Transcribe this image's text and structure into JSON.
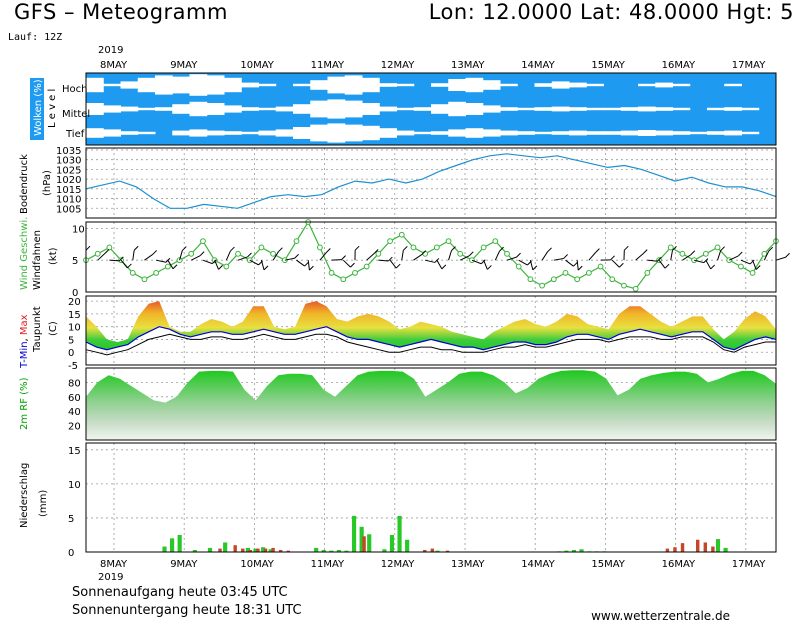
{
  "header": {
    "title": "GFS – Meteogramm",
    "coords": "Lon: 12.0000  Lat: 48.0000  Hgt: 5",
    "run": "Lauf: 12Z",
    "year_top": "2019",
    "year_bottom": "2019"
  },
  "footer": {
    "sunrise": "Sonnenaufgang heute 03:45 UTC",
    "sunset": "Sonnenuntergang heute 18:31 UTC",
    "site": "www.wetterzentrale.de"
  },
  "colors": {
    "cloud": "#1e9bf0",
    "pressure": "#1e90d0",
    "wind": "#3cb43c",
    "tmin": "#0000c8",
    "tmax": "#e02020",
    "humidity": "#00c800",
    "precip_rain": "#28c828",
    "precip_conv": "#c84628"
  },
  "chart_data": [
    {
      "type": "heatmap",
      "panel": "clouds",
      "ylabel": [
        "Wolken (%)",
        "L e v e l"
      ],
      "levels": [
        "Hoch",
        "Mittel",
        "Tief"
      ],
      "x_days": [
        "8MAY",
        "9MAY",
        "10MAY",
        "11MAY",
        "12MAY",
        "13MAY",
        "14MAY",
        "15MAY",
        "16MAY",
        "17MAY"
      ],
      "coverage": {
        "Hoch": [
          40,
          90,
          70,
          40,
          20,
          30,
          10,
          20,
          40,
          80,
          90,
          95,
          90,
          60,
          30,
          20,
          40,
          85,
          90,
          95,
          85,
          50,
          40,
          60,
          90,
          95,
          85,
          70,
          80,
          90,
          95,
          95,
          90,
          80,
          90,
          95,
          95,
          90,
          95,
          100
        ],
        "Mittel": [
          50,
          70,
          80,
          90,
          85,
          60,
          40,
          50,
          70,
          85,
          90,
          80,
          60,
          30,
          20,
          30,
          50,
          80,
          90,
          85,
          60,
          40,
          50,
          70,
          85,
          90,
          85,
          80,
          85,
          90,
          90,
          85,
          80,
          85,
          90,
          95,
          90,
          85,
          90,
          100
        ],
        "Tief": [
          60,
          70,
          85,
          90,
          95,
          80,
          70,
          80,
          85,
          90,
          80,
          70,
          50,
          30,
          20,
          30,
          40,
          60,
          80,
          90,
          85,
          70,
          60,
          70,
          80,
          85,
          90,
          85,
          80,
          85,
          85,
          80,
          75,
          80,
          85,
          90,
          85,
          80,
          90,
          100
        ]
      }
    },
    {
      "type": "line",
      "panel": "pressure",
      "ylabel": [
        "Bodendruck",
        "(hPa)"
      ],
      "ylim": [
        1000,
        1036
      ],
      "yticks": [
        "1005",
        "1010",
        "1015",
        "1020",
        "1025",
        "1030",
        "1035"
      ],
      "values": [
        1015,
        1017,
        1019,
        1016,
        1010,
        1005,
        1005,
        1007,
        1006,
        1005,
        1008,
        1011,
        1012,
        1011,
        1012,
        1016,
        1019,
        1018,
        1020,
        1018,
        1020,
        1024,
        1027,
        1030,
        1032,
        1033,
        1032,
        1031,
        1032,
        1030,
        1028,
        1026,
        1027,
        1025,
        1022,
        1019,
        1021,
        1018,
        1016,
        1016,
        1014,
        1011
      ]
    },
    {
      "type": "line",
      "panel": "wind",
      "ylabel": [
        "Wind Geschwi.",
        "Windfahnen",
        "(kt)"
      ],
      "ylim": [
        0,
        11
      ],
      "yticks": [
        "0",
        "5",
        "10"
      ],
      "values": [
        5,
        6,
        7,
        5,
        3,
        2,
        3,
        4,
        5,
        6,
        8,
        5,
        4,
        6,
        5,
        7,
        6,
        5,
        8,
        11,
        7,
        3,
        2,
        3,
        4,
        6,
        8,
        9,
        7,
        6,
        7,
        8,
        6,
        5,
        7,
        8,
        6,
        4,
        2,
        1,
        2,
        3,
        2,
        3,
        4,
        2,
        1,
        0.5,
        3,
        5,
        7,
        6,
        5,
        6,
        7,
        5,
        4,
        3,
        6,
        8
      ]
    },
    {
      "type": "area",
      "panel": "temperature",
      "ylabel": [
        "T-Min, Max",
        "Taupunkt",
        "(C)"
      ],
      "ylim": [
        -5,
        22
      ],
      "yticks": [
        "-5",
        "0",
        "5",
        "10",
        "15",
        "20"
      ],
      "series": [
        {
          "name": "Max",
          "values": [
            14,
            10,
            5,
            4,
            5,
            14,
            19,
            20,
            10,
            8,
            8,
            11,
            13,
            12,
            10,
            12,
            18,
            18,
            10,
            9,
            10,
            19,
            20,
            18,
            13,
            12,
            14,
            15,
            14,
            12,
            9,
            10,
            12,
            11,
            10,
            8,
            7,
            6,
            5,
            8,
            10,
            12,
            13,
            11,
            10,
            12,
            15,
            14,
            11,
            10,
            9,
            15,
            18,
            18,
            15,
            12,
            10,
            12,
            14,
            14,
            9,
            5,
            8,
            13,
            16,
            14,
            9
          ]
        },
        {
          "name": "Min",
          "values": [
            4,
            2,
            1,
            2,
            3,
            6,
            8,
            10,
            9,
            7,
            6,
            7,
            8,
            8,
            7,
            7,
            8,
            9,
            8,
            7,
            7,
            8,
            9,
            10,
            8,
            6,
            5,
            5,
            4,
            3,
            2,
            3,
            4,
            5,
            4,
            3,
            2,
            2,
            1,
            2,
            3,
            4,
            4,
            3,
            3,
            4,
            6,
            7,
            7,
            6,
            5,
            7,
            8,
            9,
            8,
            7,
            6,
            7,
            8,
            8,
            5,
            2,
            1,
            3,
            5,
            6,
            5
          ]
        },
        {
          "name": "Taupunkt",
          "values": [
            1,
            0,
            -1,
            0,
            1,
            3,
            5,
            6,
            7,
            6,
            5,
            5,
            6,
            6,
            5,
            5,
            6,
            7,
            6,
            5,
            5,
            6,
            7,
            7,
            6,
            4,
            3,
            2,
            1,
            0,
            0,
            1,
            2,
            2,
            1,
            1,
            0,
            0,
            0,
            1,
            2,
            2,
            3,
            2,
            2,
            3,
            4,
            5,
            5,
            5,
            4,
            5,
            6,
            6,
            6,
            5,
            5,
            6,
            6,
            6,
            4,
            1,
            0,
            2,
            3,
            4,
            4
          ]
        }
      ]
    },
    {
      "type": "area",
      "panel": "humidity",
      "ylabel": [
        "2m RF (%)"
      ],
      "ylim": [
        0,
        100
      ],
      "yticks": [
        "20",
        "40",
        "60",
        "80"
      ],
      "values": [
        60,
        80,
        90,
        85,
        75,
        65,
        55,
        52,
        60,
        80,
        95,
        96,
        96,
        95,
        70,
        55,
        75,
        90,
        92,
        92,
        90,
        70,
        60,
        75,
        90,
        95,
        96,
        96,
        95,
        85,
        60,
        70,
        80,
        92,
        95,
        95,
        90,
        80,
        65,
        72,
        85,
        92,
        96,
        97,
        97,
        95,
        85,
        62,
        70,
        85,
        90,
        93,
        95,
        95,
        92,
        80,
        85,
        92,
        96,
        96,
        90,
        78
      ]
    },
    {
      "type": "bar",
      "panel": "precipitation",
      "ylabel": [
        "Niederschlag",
        "(mm)"
      ],
      "ylim": [
        0,
        16
      ],
      "yticks": [
        "0",
        "5",
        "10",
        "15"
      ],
      "series": [
        {
          "name": "rain",
          "values": [
            0,
            0,
            0,
            0,
            0,
            0,
            0,
            0,
            0,
            0,
            0.8,
            2.0,
            2.5,
            0,
            0.3,
            0,
            0.6,
            0,
            1.4,
            0,
            0,
            0.6,
            0.5,
            0.7,
            0.4,
            0,
            0,
            0,
            0,
            0,
            0.6,
            0.3,
            0.2,
            0.3,
            0.2,
            5.3,
            3.7,
            2.6,
            0,
            0.4,
            2.5,
            5.3,
            1.8,
            0,
            0,
            0,
            0.2,
            0,
            0,
            0,
            0,
            0,
            0,
            0,
            0,
            0,
            0,
            0,
            0,
            0,
            0,
            0,
            0.1,
            0.2,
            0.3,
            0.4,
            0.1,
            0.1,
            0.1,
            0,
            0,
            0,
            0,
            0,
            0,
            0,
            0,
            0,
            0,
            0,
            0,
            0,
            0,
            1.9,
            0.6,
            0,
            0,
            0,
            0,
            0,
            0
          ]
        },
        {
          "name": "conv",
          "values": [
            0,
            0,
            0,
            0,
            0,
            0,
            0,
            0,
            0,
            0,
            0,
            0,
            0,
            0,
            0,
            0,
            0,
            0.5,
            0,
            1.0,
            0.5,
            0.3,
            0.5,
            0.5,
            0.6,
            0.3,
            0.2,
            0,
            0,
            0,
            0,
            0,
            0,
            0,
            0,
            0,
            2.3,
            0,
            0,
            0,
            0,
            0,
            0,
            0,
            0.3,
            0.5,
            0,
            0.2,
            0,
            0,
            0,
            0,
            0,
            0,
            0,
            0,
            0,
            0,
            0,
            0,
            0,
            0,
            0,
            0,
            0,
            0,
            0,
            0,
            0,
            0,
            0,
            0,
            0,
            0,
            0,
            0,
            0.5,
            0.7,
            1.3,
            0,
            1.8,
            1.4,
            0.8,
            0,
            0,
            0,
            0,
            0,
            0,
            0,
            0
          ]
        }
      ]
    }
  ]
}
